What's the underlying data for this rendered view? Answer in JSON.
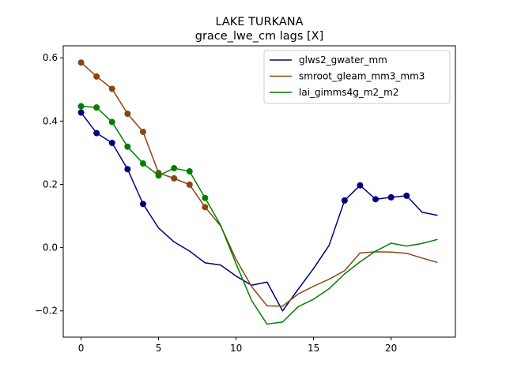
{
  "chart_data": {
    "type": "line",
    "title": "LAKE TURKANA",
    "subtitle": "grace_lwe_cm lags [X]",
    "xlabel": "",
    "ylabel": "",
    "xlim": [
      -1.15,
      24.15
    ],
    "ylim": [
      -0.283,
      0.638
    ],
    "x_ticks": [
      0,
      5,
      10,
      15,
      20
    ],
    "y_ticks": [
      0.6,
      0.4,
      0.2,
      0.0,
      -0.2
    ],
    "y_tick_labels": [
      "0.6",
      "0.4",
      "0.2",
      "0.0",
      "−0.2"
    ],
    "grid": false,
    "legend_position": "top-right",
    "x": [
      0,
      1,
      2,
      3,
      4,
      5,
      6,
      7,
      8,
      9,
      10,
      11,
      12,
      13,
      14,
      15,
      16,
      17,
      18,
      19,
      20,
      21,
      22,
      23
    ],
    "series": [
      {
        "name": "glws2_gwater_mm",
        "color": "#00007f",
        "values": [
          0.427,
          0.362,
          0.331,
          0.248,
          0.138,
          0.062,
          0.018,
          -0.011,
          -0.048,
          -0.055,
          -0.09,
          -0.119,
          -0.109,
          -0.2,
          -0.132,
          -0.066,
          0.007,
          0.149,
          0.197,
          0.153,
          0.159,
          0.164,
          0.112,
          0.102
        ],
        "markers": [
          0,
          1,
          2,
          3,
          4,
          17,
          18,
          19,
          20,
          21
        ]
      },
      {
        "name": "smroot_gleam_mm3_mm3",
        "color": "#8b4513",
        "values": [
          0.585,
          0.541,
          0.502,
          0.423,
          0.366,
          0.236,
          0.219,
          0.199,
          0.128,
          0.069,
          -0.037,
          -0.123,
          -0.184,
          -0.185,
          -0.147,
          -0.122,
          -0.1,
          -0.073,
          -0.017,
          -0.013,
          -0.014,
          -0.018,
          -0.033,
          -0.047
        ],
        "markers": [
          0,
          1,
          2,
          3,
          4,
          5,
          6,
          7,
          8
        ]
      },
      {
        "name": "lai_gimms4g_m2_m2",
        "color": "#007f00",
        "values": [
          0.447,
          0.443,
          0.397,
          0.319,
          0.266,
          0.228,
          0.251,
          0.241,
          0.157,
          0.071,
          -0.051,
          -0.167,
          -0.242,
          -0.235,
          -0.187,
          -0.163,
          -0.13,
          -0.083,
          -0.045,
          -0.011,
          0.014,
          0.005,
          0.013,
          0.026
        ],
        "markers": [
          0,
          1,
          2,
          3,
          4,
          5,
          6,
          7,
          8
        ]
      }
    ]
  }
}
